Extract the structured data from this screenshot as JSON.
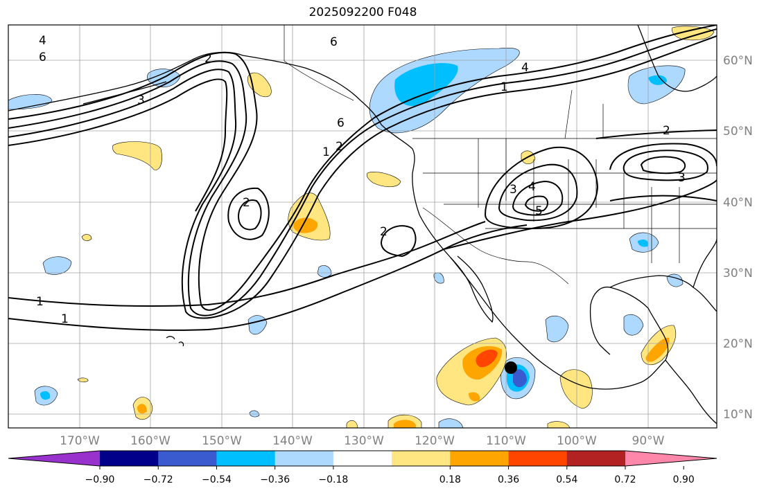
{
  "title": "2025092200 F048",
  "map": {
    "lon_labels": [
      "170°W",
      "160°W",
      "150°W",
      "140°W",
      "130°W",
      "120°W",
      "110°W",
      "100°W",
      "90°W"
    ],
    "lat_labels": [
      "10°N",
      "20°N",
      "30°N",
      "40°N",
      "50°N",
      "60°N"
    ],
    "contour_labels": [
      "4",
      "6",
      "6",
      "4",
      "1",
      "6",
      "2",
      "1",
      "2",
      "2",
      "3",
      "4",
      "5",
      "3",
      "2",
      "1",
      "1",
      "2",
      "3"
    ],
    "marker": {
      "type": "dot",
      "lon": -109.0,
      "lat": 16.5
    },
    "colors": {
      "land_outline": "#000000",
      "grid": "#a0a0a0",
      "contour": "#000000"
    }
  },
  "colorbar": {
    "levels": [
      "−0.90",
      "−0.72",
      "−0.54",
      "−0.36",
      "−0.18",
      "0.18",
      "0.36",
      "0.54",
      "0.72",
      "0.90"
    ],
    "colors": [
      "#9932cc",
      "#00008b",
      "#3a5bd0",
      "#00bfff",
      "#add8ff",
      "#ffffff",
      "#ffe680",
      "#ffa500",
      "#ff4500",
      "#b22222",
      "#ff88aa"
    ]
  }
}
